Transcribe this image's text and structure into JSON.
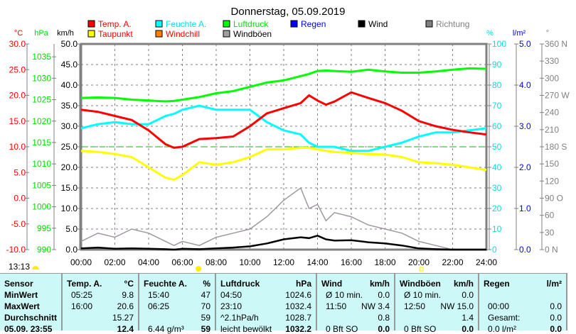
{
  "title": "Donnerstag, 05.09.2019",
  "legend": [
    {
      "label": "Temp. A.",
      "color": "#ff0000",
      "text_color": "#ff0000"
    },
    {
      "label": "Feuchte A.",
      "color": "#00ffff",
      "text_color": "#00e0e0"
    },
    {
      "label": "Luftdruck",
      "color": "#00ff00",
      "text_color": "#00e000"
    },
    {
      "label": "Regen",
      "color": "#0000ff",
      "text_color": "#0000ff"
    },
    {
      "label": "Wind",
      "color": "#000000",
      "text_color": "#000000"
    },
    {
      "label": "Richtung",
      "color": "#808080",
      "text_color": "#808080"
    },
    {
      "label": "Taupunkt",
      "color": "#ffff00",
      "text_color": "#ff0000"
    },
    {
      "label": "Windchill",
      "color": "#ff8000",
      "text_color": "#ff0000"
    },
    {
      "label": "Windböen",
      "color": "#a0a0a0",
      "text_color": "#000000"
    }
  ],
  "current_time": "13:13",
  "chart_data": {
    "type": "line",
    "title": "Donnerstag, 05.09.2019",
    "x_ticks": [
      "00:00",
      "02:00",
      "04:00",
      "06:00",
      "08:00",
      "10:00",
      "12:00",
      "14:00",
      "16:00",
      "18:00",
      "20:00",
      "22:00",
      "24:00"
    ],
    "axes": {
      "temp": {
        "unit": "°C",
        "ticks": [
          "30.0",
          "25.0",
          "20.0",
          "15.0",
          "10.0",
          "5.0",
          "0.0",
          "-5.0",
          "-10.0"
        ],
        "range": [
          -10,
          30
        ]
      },
      "pressure": {
        "unit": "hPa",
        "ticks": [
          "1035",
          "1030",
          "1025",
          "1020",
          "1015",
          "1010",
          "1005",
          "1000",
          "995",
          "990"
        ],
        "range": [
          990,
          1038
        ]
      },
      "wind": {
        "unit": "km/h",
        "ticks": [
          "50.0",
          "45.0",
          "40.0",
          "35.0",
          "30.0",
          "25.0",
          "20.0",
          "15.0",
          "10.0",
          "5.0",
          "0.0"
        ],
        "range": [
          0,
          50
        ]
      },
      "humidity": {
        "unit": "%",
        "ticks": [
          "100",
          "90",
          "80",
          "70",
          "60",
          "50",
          "40",
          "30",
          "20",
          "10",
          "0"
        ],
        "range": [
          0,
          100
        ]
      },
      "rain": {
        "unit": "l/m²",
        "ticks": [
          "5.0",
          "4.0",
          "3.0",
          "2.0",
          "1.0",
          "0.0"
        ],
        "range": [
          0,
          5
        ]
      },
      "direction": {
        "unit": "°",
        "ticks": [
          "360 N",
          "330",
          "300",
          "270 W",
          "240",
          "210",
          "180 S",
          "150",
          "120",
          "90  O",
          "60",
          "30",
          "0   N"
        ],
        "range": [
          0,
          360
        ]
      }
    },
    "hours": [
      0,
      1,
      2,
      3,
      4,
      5,
      5.5,
      6,
      7,
      8,
      9,
      10,
      11,
      12,
      13,
      13.5,
      14,
      14.5,
      15,
      16,
      17,
      18,
      19,
      20,
      21,
      22,
      23,
      24
    ],
    "series": [
      {
        "name": "Temp. A.",
        "axis": "temp",
        "values": [
          17.2,
          16.8,
          16,
          15.2,
          13.2,
          10.5,
          9.8,
          10,
          11.5,
          11.7,
          12,
          14,
          16.5,
          17.5,
          18.5,
          20,
          19,
          18.2,
          18.8,
          20.6,
          19.5,
          18.5,
          17,
          15,
          14,
          13.3,
          12.8,
          12.4
        ]
      },
      {
        "name": "Feuchte A.",
        "axis": "humidity",
        "values": [
          59,
          61,
          62,
          61,
          61,
          65,
          66,
          68,
          70,
          68,
          68,
          68,
          62,
          58,
          56,
          52,
          50,
          50,
          50,
          48,
          48,
          50,
          52,
          55,
          57,
          57,
          58,
          59
        ]
      },
      {
        "name": "Luftdruck",
        "axis": "pressure",
        "values": [
          1025.4,
          1025.5,
          1025.4,
          1025,
          1024.8,
          1024.6,
          1024.7,
          1025,
          1025.6,
          1026.5,
          1027,
          1028,
          1029,
          1029.5,
          1030.5,
          1031,
          1031.7,
          1031.8,
          1031.7,
          1031.5,
          1032,
          1031.6,
          1031.3,
          1031.3,
          1031.6,
          1032,
          1032.3,
          1032.2
        ]
      },
      {
        "name": "Taupunkt",
        "axis": "temp",
        "values": [
          9.2,
          9,
          8.6,
          8,
          6,
          4,
          3.6,
          4.5,
          7,
          6.5,
          7,
          8,
          9.5,
          9.5,
          9.8,
          9.8,
          9.5,
          9.2,
          9,
          8.8,
          8.6,
          8.5,
          8,
          7,
          6.8,
          6.5,
          6,
          5.5
        ]
      },
      {
        "name": "Wind",
        "axis": "wind",
        "values": [
          0.3,
          0.5,
          0.2,
          0.3,
          0.2,
          0.1,
          0,
          0.2,
          0.1,
          0.3,
          0.5,
          0.8,
          1.5,
          2.5,
          3,
          2.8,
          3.4,
          2.5,
          2.2,
          2.3,
          1.8,
          1.5,
          1,
          0.3,
          0.1,
          0,
          0,
          0
        ]
      },
      {
        "name": "Windböen",
        "axis": "wind",
        "values": [
          2,
          4,
          3,
          5,
          4,
          2,
          1,
          2,
          1,
          3,
          4,
          5,
          8,
          12,
          15,
          10,
          11,
          7,
          9,
          8,
          6,
          5,
          4,
          2,
          1,
          0,
          0,
          0
        ]
      }
    ],
    "reference_line": {
      "axis": "temp",
      "value": 10,
      "color": "#00c000"
    }
  },
  "table": {
    "columns": [
      {
        "header": "Sensor",
        "unit": "",
        "rows": [
          "MinWert",
          "MaxWert",
          "Durchschnitt",
          "05.09. 23:55"
        ]
      },
      {
        "header": "Temp. A.",
        "unit": "°C",
        "left": [
          "05:25",
          "16:00",
          "",
          ""
        ],
        "right": [
          "9.8",
          "20.6",
          "15.27",
          "12.4"
        ]
      },
      {
        "header": "Feuchte A.",
        "unit": "%",
        "left": [
          "15:40",
          "06:25",
          "",
          "6.44 g/m³"
        ],
        "right": [
          "47",
          "70",
          "59",
          "59"
        ]
      },
      {
        "header": "Luftdruck",
        "unit": "hPa",
        "left": [
          "04:50",
          "23:10",
          "^2.1hPa/h",
          "leicht bewölkt"
        ],
        "right": [
          "1024.6",
          "1032.4",
          "1028.7",
          "1032.2"
        ]
      },
      {
        "header": "Wind",
        "unit": "km/h",
        "left": [
          "Ø 10 min.",
          "11:50",
          "",
          "0 Bft SO"
        ],
        "right": [
          "0.0",
          "NW 3.4",
          "0.8",
          "0.0"
        ]
      },
      {
        "header": "Windböen",
        "unit": "km/h",
        "left": [
          "Ø 10 min.",
          "12:50",
          "",
          "0 Bft SO"
        ],
        "right": [
          "0.0",
          "NW 15.0",
          "1.4",
          "0.0"
        ]
      },
      {
        "header": "Regen",
        "unit": "l/m²",
        "left": [
          "",
          "00:00",
          "Gesamt:",
          "0.0 l/m²"
        ],
        "right": [
          "",
          "0.0",
          "0.0",
          "0.0"
        ]
      }
    ]
  }
}
